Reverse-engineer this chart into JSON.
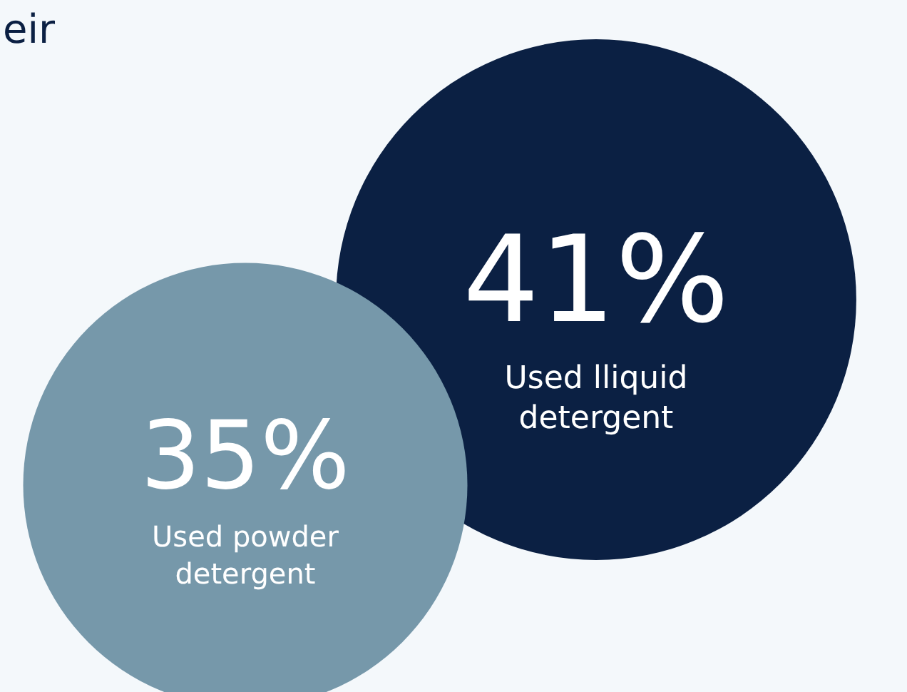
{
  "chart_data": {
    "type": "other",
    "title": "eir",
    "categories": [
      "Used lliquid\ndetergent",
      "Used powder\ndetergent"
    ],
    "values": [
      41,
      35
    ],
    "value_labels": [
      "41%",
      "35%"
    ],
    "colors": [
      "#0b2043",
      "#7698aa"
    ]
  }
}
